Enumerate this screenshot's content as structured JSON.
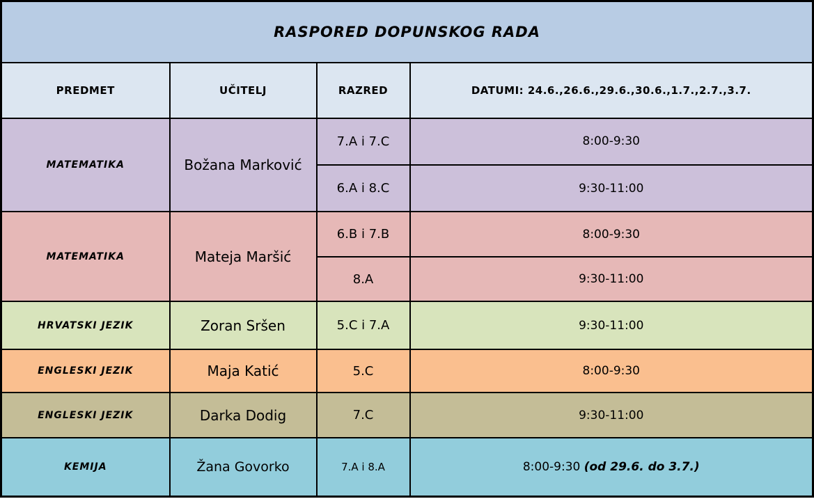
{
  "title": "RASPORED DOPUNSKOG RADA",
  "columns": {
    "predmet": "PREDMET",
    "ucitelj": "UČITELJ",
    "razred": "RAZRED",
    "datumi": "DATUMI: 24.6.,26.6.,29.6.,30.6.,1.7.,2.7.,3.7."
  },
  "colors": {
    "title_bg": "#b8cce4",
    "header_bg": "#dce6f1",
    "border": "#000000",
    "text": "#000000"
  },
  "groups": [
    {
      "subject": "MATEMATIKA",
      "teacher": "Božana Marković",
      "color": "#ccc0da",
      "sessions": [
        {
          "razred": "7.A i 7.C",
          "time": "8:00-9:30"
        },
        {
          "razred": "6.A i 8.C",
          "time": "9:30-11:00"
        }
      ]
    },
    {
      "subject": "MATEMATIKA",
      "teacher": "Mateja Maršić",
      "color": "#e6b8b7",
      "sessions": [
        {
          "razred": "6.B i 7.B",
          "time": "8:00-9:30"
        },
        {
          "razred": "8.A",
          "time": "9:30-11:00"
        }
      ]
    },
    {
      "subject": "HRVATSKI JEZIK",
      "teacher": "Zoran Sršen",
      "color": "#d8e4bc",
      "sessions": [
        {
          "razred": "5.C i 7.A",
          "time": "9:30-11:00"
        }
      ]
    },
    {
      "subject": "ENGLESKI JEZIK",
      "teacher": "Maja Katić",
      "color": "#fabf8f",
      "sessions": [
        {
          "razred": "5.C",
          "time": "8:00-9:30"
        }
      ]
    },
    {
      "subject": "ENGLESKI JEZIK",
      "teacher": "Darka Dodig",
      "color": "#c4bd97",
      "sessions": [
        {
          "razred": "7.C",
          "time": "9:30-11:00"
        }
      ]
    },
    {
      "subject": "KEMIJA",
      "teacher": "Žana Govorko",
      "color": "#92cddc",
      "sessions": [
        {
          "razred": "7.A i 8.A",
          "time": "8:00-9:30 ",
          "time_note": "(od 29.6. do 3.7.)"
        }
      ]
    }
  ]
}
